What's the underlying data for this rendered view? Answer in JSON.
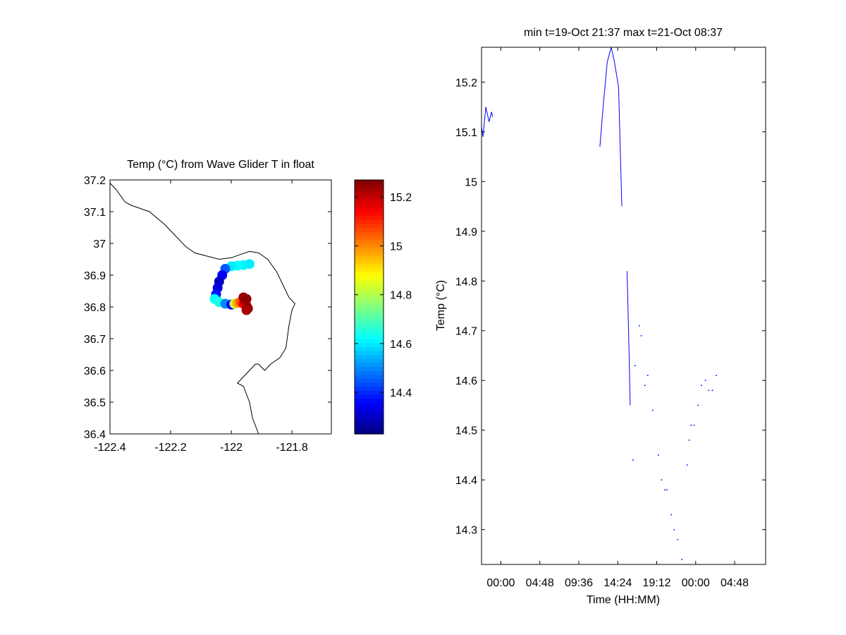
{
  "chart_data": [
    {
      "type": "scatter",
      "title": "Temp (°C) from Wave Glider T in float",
      "xlabel": "",
      "ylabel": "",
      "xlim": [
        -122.4,
        -121.67
      ],
      "ylim": [
        36.4,
        37.2
      ],
      "x_ticks": [
        -122.4,
        -122.2,
        -122,
        -121.8
      ],
      "x_tick_labels": [
        "-122.4",
        "-122.2",
        "-122",
        "-121.8"
      ],
      "y_ticks": [
        36.4,
        36.5,
        36.6,
        36.7,
        36.8,
        36.9,
        37,
        37.1,
        37.2
      ],
      "y_tick_labels": [
        "36.4",
        "36.5",
        "36.6",
        "36.7",
        "36.8",
        "36.9",
        "37",
        "37.1",
        "37.2"
      ],
      "grid": false,
      "colormap": "jet",
      "colorbar": {
        "range": [
          14.23,
          15.27
        ],
        "ticks": [
          14.4,
          14.6,
          14.8,
          15,
          15.2
        ],
        "tick_labels": [
          "14.4",
          "14.6",
          "14.8",
          "15",
          "15.2"
        ]
      },
      "coastline": [
        [
          -122.4,
          37.19
        ],
        [
          -122.38,
          37.17
        ],
        [
          -122.35,
          37.13
        ],
        [
          -122.33,
          37.12
        ],
        [
          -122.3,
          37.11
        ],
        [
          -122.27,
          37.1
        ],
        [
          -122.22,
          37.06
        ],
        [
          -122.18,
          37.02
        ],
        [
          -122.15,
          36.99
        ],
        [
          -122.12,
          36.97
        ],
        [
          -122.08,
          36.96
        ],
        [
          -122.04,
          36.95
        ],
        [
          -122.0,
          36.955
        ],
        [
          -121.97,
          36.965
        ],
        [
          -121.94,
          36.975
        ],
        [
          -121.91,
          36.97
        ],
        [
          -121.88,
          36.95
        ],
        [
          -121.85,
          36.91
        ],
        [
          -121.83,
          36.87
        ],
        [
          -121.81,
          36.83
        ],
        [
          -121.79,
          36.81
        ],
        [
          -121.8,
          36.79
        ],
        [
          -121.81,
          36.74
        ],
        [
          -121.82,
          36.67
        ],
        [
          -121.84,
          36.64
        ],
        [
          -121.87,
          36.62
        ],
        [
          -121.89,
          36.6
        ],
        [
          -121.91,
          36.62
        ],
        [
          -121.92,
          36.62
        ],
        [
          -121.94,
          36.6
        ],
        [
          -121.96,
          36.58
        ],
        [
          -121.98,
          36.56
        ],
        [
          -121.96,
          36.55
        ],
        [
          -121.94,
          36.5
        ],
        [
          -121.93,
          36.45
        ],
        [
          -121.91,
          36.4
        ]
      ],
      "points": [
        {
          "lon": -121.94,
          "lat": 36.935,
          "temp": 14.6
        },
        {
          "lon": -121.96,
          "lat": 36.932,
          "temp": 14.61
        },
        {
          "lon": -121.98,
          "lat": 36.93,
          "temp": 14.62
        },
        {
          "lon": -122.0,
          "lat": 36.928,
          "temp": 14.6
        },
        {
          "lon": -122.02,
          "lat": 36.92,
          "temp": 14.45
        },
        {
          "lon": -122.03,
          "lat": 36.9,
          "temp": 14.35
        },
        {
          "lon": -122.04,
          "lat": 36.88,
          "temp": 14.3
        },
        {
          "lon": -122.045,
          "lat": 36.86,
          "temp": 14.32
        },
        {
          "lon": -122.05,
          "lat": 36.84,
          "temp": 14.38
        },
        {
          "lon": -122.055,
          "lat": 36.825,
          "temp": 14.62
        },
        {
          "lon": -122.04,
          "lat": 36.815,
          "temp": 14.65
        },
        {
          "lon": -122.02,
          "lat": 36.81,
          "temp": 14.5
        },
        {
          "lon": -122.0,
          "lat": 36.807,
          "temp": 14.35
        },
        {
          "lon": -121.99,
          "lat": 36.81,
          "temp": 14.82
        },
        {
          "lon": -121.98,
          "lat": 36.812,
          "temp": 14.97
        },
        {
          "lon": -121.97,
          "lat": 36.815,
          "temp": 15.05
        },
        {
          "lon": -121.96,
          "lat": 36.81,
          "temp": 15.15
        },
        {
          "lon": -121.95,
          "lat": 36.805,
          "temp": 15.2
        },
        {
          "lon": -121.955,
          "lat": 36.82,
          "temp": 15.22
        },
        {
          "lon": -121.96,
          "lat": 36.83,
          "temp": 15.24
        },
        {
          "lon": -121.95,
          "lat": 36.825,
          "temp": 15.25
        },
        {
          "lon": -121.945,
          "lat": 36.795,
          "temp": 15.26
        },
        {
          "lon": -121.95,
          "lat": 36.79,
          "temp": 15.23
        }
      ]
    },
    {
      "type": "line",
      "title": "min t=19-Oct 21:37 max t=21-Oct 08:37",
      "xlabel": "Time (HH:MM)",
      "ylabel": "Temp (°C)",
      "x_unit": "hours_from_19-Oct_00:00",
      "xlim": [
        21.617,
        56.617
      ],
      "ylim": [
        14.23,
        15.27
      ],
      "x_ticks": [
        24,
        28.8,
        33.6,
        38.4,
        43.2,
        48,
        52.8
      ],
      "x_tick_labels": [
        "00:00",
        "04:48",
        "09:36",
        "14:24",
        "19:12",
        "00:00",
        "04:48"
      ],
      "y_ticks": [
        14.3,
        14.4,
        14.5,
        14.6,
        14.7,
        14.8,
        14.9,
        15,
        15.1,
        15.2
      ],
      "y_tick_labels": [
        "14.3",
        "14.4",
        "14.5",
        "14.6",
        "14.7",
        "14.8",
        "14.9",
        "15",
        "15.1",
        "15.2"
      ],
      "grid": false,
      "line_color": "#0000ff",
      "segments": [
        [
          [
            21.62,
            15.11
          ],
          [
            21.8,
            15.09
          ],
          [
            22.15,
            15.15
          ],
          [
            22.55,
            15.12
          ],
          [
            22.85,
            15.14
          ],
          [
            23.0,
            15.13
          ]
        ],
        [
          [
            36.2,
            15.07
          ],
          [
            36.6,
            15.15
          ],
          [
            37.1,
            15.24
          ],
          [
            37.6,
            15.27
          ],
          [
            38.0,
            15.24
          ],
          [
            38.5,
            15.19
          ],
          [
            38.9,
            14.95
          ]
        ],
        [
          [
            39.55,
            14.82
          ],
          [
            39.8,
            14.65
          ],
          [
            39.93,
            14.55
          ]
        ]
      ],
      "dots": [
        [
          40.3,
          14.44
        ],
        [
          40.55,
          14.63
        ],
        [
          41.05,
          14.71
        ],
        [
          41.3,
          14.69
        ],
        [
          41.75,
          14.59
        ],
        [
          42.1,
          14.61
        ],
        [
          42.7,
          14.54
        ],
        [
          43.4,
          14.45
        ],
        [
          43.8,
          14.4
        ],
        [
          44.2,
          14.38
        ],
        [
          44.45,
          14.38
        ],
        [
          45.0,
          14.33
        ],
        [
          45.35,
          14.3
        ],
        [
          45.8,
          14.28
        ],
        [
          46.3,
          14.24
        ],
        [
          46.95,
          14.43
        ],
        [
          47.2,
          14.48
        ],
        [
          47.45,
          14.51
        ],
        [
          47.8,
          14.51
        ],
        [
          48.3,
          14.55
        ],
        [
          48.7,
          14.59
        ],
        [
          49.2,
          14.6
        ],
        [
          49.6,
          14.58
        ],
        [
          50.05,
          14.58
        ],
        [
          50.55,
          14.61
        ]
      ]
    }
  ]
}
